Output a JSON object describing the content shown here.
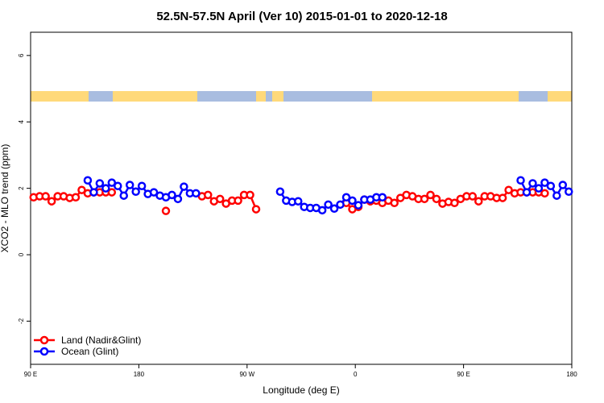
{
  "chart_data": {
    "type": "line",
    "title": "52.5N-57.5N April (Ver 10)   2015-01-01 to 2020-12-18",
    "x_label": "Longitude (deg E)",
    "y_label": "XCO2 - MLO trend (ppm)",
    "x": [
      92.5,
      97.5,
      102.5,
      107.5,
      112.5,
      117.5,
      122.5,
      127.5,
      132.5,
      137.5,
      142.5,
      147.5,
      152.5,
      157.5,
      162.5,
      167.5,
      172.5,
      177.5,
      182.5,
      187.5,
      192.5,
      197.5,
      202.5,
      207.5,
      212.5,
      217.5,
      222.5,
      227.5,
      232.5,
      237.5,
      242.5,
      247.5,
      252.5,
      257.5,
      262.5,
      267.5,
      272.5,
      277.5,
      282.5,
      287.5,
      292.5,
      297.5,
      302.5,
      307.5,
      312.5,
      317.5,
      322.5,
      327.5,
      332.5,
      337.5,
      342.5,
      347.5,
      352.5,
      357.5,
      362.5,
      367.5,
      372.5,
      377.5,
      382.5,
      387.5,
      392.5,
      397.5,
      402.5,
      407.5,
      412.5,
      417.5,
      422.5,
      427.5,
      432.5,
      437.5,
      442.5,
      447.5,
      452.5,
      457.5,
      462.5,
      467.5,
      472.5,
      477.5,
      482.5,
      487.5,
      492.5,
      497.5,
      502.5,
      507.5,
      512.5,
      517.5,
      522.5,
      527.5,
      532.5,
      537.5
    ],
    "series": [
      {
        "name": "Land (Nadir&Glint)",
        "color": "#ff0000",
        "values": [
          1.73,
          1.76,
          1.76,
          1.61,
          1.76,
          1.76,
          1.71,
          1.73,
          1.95,
          1.85,
          1.88,
          1.88,
          1.88,
          1.88,
          null,
          null,
          null,
          null,
          null,
          null,
          null,
          null,
          1.32,
          null,
          null,
          null,
          null,
          null,
          1.76,
          1.8,
          1.61,
          1.68,
          1.54,
          1.63,
          1.63,
          1.8,
          1.8,
          1.37,
          null,
          null,
          null,
          null,
          null,
          null,
          null,
          null,
          null,
          null,
          null,
          null,
          null,
          null,
          1.56,
          1.37,
          1.44,
          1.66,
          1.61,
          1.63,
          1.56,
          1.63,
          1.56,
          1.71,
          1.8,
          1.76,
          1.68,
          1.68,
          1.8,
          1.68,
          1.54,
          1.59,
          1.56,
          1.68,
          1.76,
          1.76,
          1.61,
          1.76,
          1.76,
          1.71,
          1.71,
          1.95,
          1.85,
          1.88,
          1.88,
          1.88,
          1.88,
          1.85,
          null,
          null,
          null,
          null
        ]
      },
      {
        "name": "Ocean (Glint)",
        "color": "#0000ff",
        "values": [
          null,
          null,
          null,
          null,
          null,
          null,
          null,
          null,
          null,
          2.24,
          1.88,
          2.15,
          2.0,
          2.17,
          2.07,
          1.78,
          2.1,
          1.9,
          2.07,
          1.83,
          1.88,
          1.78,
          1.73,
          1.8,
          1.68,
          2.05,
          1.85,
          1.85,
          null,
          null,
          null,
          null,
          null,
          null,
          null,
          null,
          null,
          null,
          null,
          null,
          null,
          1.9,
          1.63,
          1.59,
          1.61,
          1.44,
          1.41,
          1.41,
          1.34,
          1.51,
          1.39,
          1.51,
          1.73,
          1.63,
          1.49,
          1.66,
          1.66,
          1.73,
          1.73,
          null,
          null,
          null,
          null,
          null,
          null,
          null,
          null,
          null,
          null,
          null,
          null,
          null,
          null,
          null,
          null,
          null,
          null,
          null,
          null,
          null,
          null,
          2.24,
          1.88,
          2.15,
          2.0,
          2.17,
          2.07,
          1.78,
          2.1,
          1.9
        ]
      }
    ],
    "xlim": [
      90,
      540
    ],
    "xticks": [
      {
        "value": 90,
        "label": "90 E"
      },
      180,
      {
        "value": 270,
        "label": "90 W"
      },
      {
        "value": 360,
        "label": "0"
      },
      {
        "value": 450,
        "label": "90 E"
      },
      {
        "value": 540,
        "label": "180"
      }
    ],
    "ylim": [
      -3.3,
      6.7
    ],
    "yticks": [
      -2,
      0,
      2,
      4,
      6
    ],
    "legend": "bottomleft"
  }
}
